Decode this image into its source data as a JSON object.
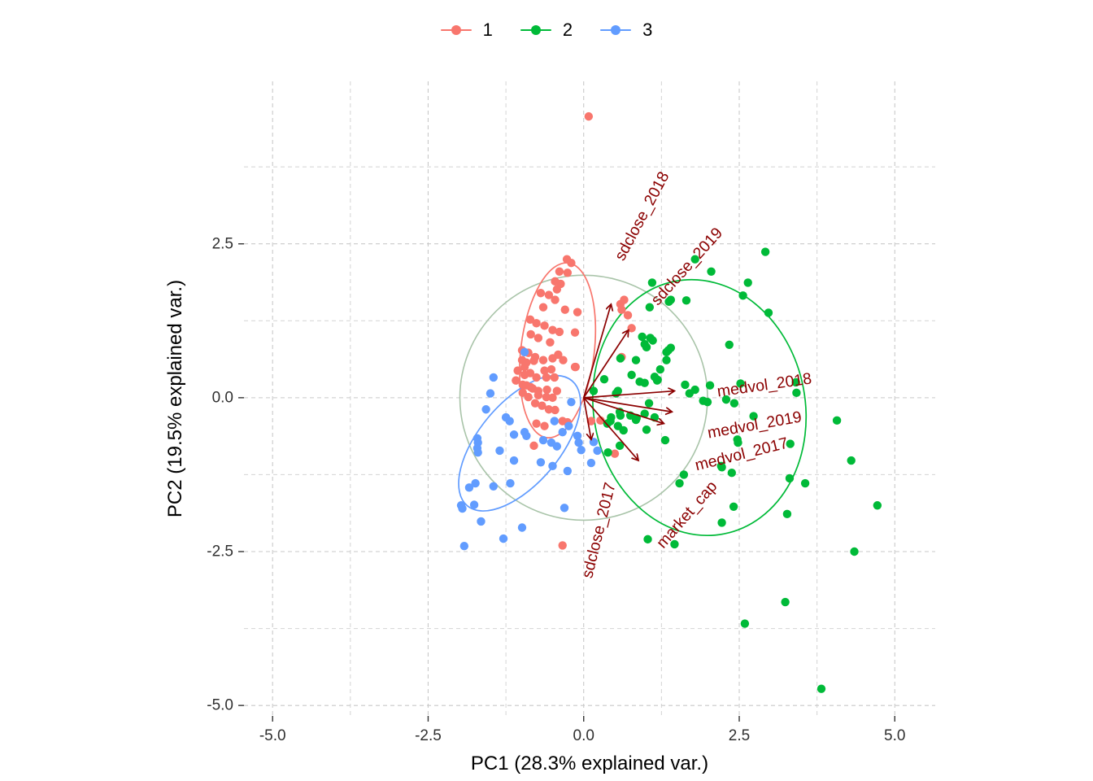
{
  "legend": {
    "items": [
      {
        "label": "1",
        "color": "#F8766D"
      },
      {
        "label": "2",
        "color": "#00BA38"
      },
      {
        "label": "3",
        "color": "#619CFF"
      }
    ]
  },
  "axes": {
    "x": {
      "title": "PC1 (28.3% explained var.)",
      "range": [
        -5.46,
        5.65
      ],
      "major_ticks": [
        -5.0,
        -2.5,
        0.0,
        2.5,
        5.0
      ],
      "tick_labels": [
        "-5.0",
        "-2.5",
        "0.0",
        "2.5",
        "5.0"
      ],
      "minor_ticks": [
        -3.75,
        -1.25,
        1.25,
        3.75
      ]
    },
    "y": {
      "title": "PC2 (19.5% explained var.)",
      "range": [
        -5.17,
        5.14
      ],
      "major_ticks": [
        2.5,
        0.0,
        -2.5,
        -5.0
      ],
      "tick_labels": [
        "2.5",
        "0.0",
        "-2.5",
        "-5.0"
      ],
      "minor_ticks": [
        3.75,
        1.25,
        -1.25,
        -3.75
      ]
    }
  },
  "chart_data": {
    "type": "scatter",
    "subtype": "pca-biplot",
    "title": "",
    "xlabel": "PC1 (28.3% explained var.)",
    "ylabel": "PC2 (19.5% explained var.)",
    "grid": "dashed",
    "legend_position": "top",
    "colors": {
      "grid": "#cccccc",
      "loading": "#8b0000",
      "unit_circle": "#a9c4a9"
    },
    "unit_circle": {
      "cx": 0,
      "cy": 0,
      "r": 1.99
    },
    "loadings": [
      {
        "name": "sdclose_2018",
        "tip_x": 0.44,
        "tip_y": 1.52,
        "label_x": 0.94,
        "label_y": 2.95,
        "label_angle": -62
      },
      {
        "name": "sdclose_2019",
        "tip_x": 0.72,
        "tip_y": 1.1,
        "label_x": 1.66,
        "label_y": 2.13,
        "label_angle": -48
      },
      {
        "name": "medvol_2018",
        "tip_x": 1.46,
        "tip_y": 0.11,
        "label_x": 2.9,
        "label_y": 0.19,
        "label_angle": -8
      },
      {
        "name": "medvol_2019",
        "tip_x": 1.42,
        "tip_y": -0.23,
        "label_x": 2.75,
        "label_y": -0.45,
        "label_angle": -10
      },
      {
        "name": "medvol_2017",
        "tip_x": 1.29,
        "tip_y": -0.42,
        "label_x": 2.54,
        "label_y": -0.93,
        "label_angle": -14
      },
      {
        "name": "market_cap",
        "tip_x": 0.88,
        "tip_y": -1.02,
        "label_x": 1.66,
        "label_y": -1.91,
        "label_angle": -49
      },
      {
        "name": "sdclose_2017",
        "tip_x": 0.12,
        "tip_y": -0.68,
        "label_x": 0.25,
        "label_y": -2.15,
        "label_angle": -76
      }
    ],
    "groups": [
      {
        "name": "1",
        "color": "#F8766D",
        "ellipse": {
          "cx": -0.42,
          "cy": 0.77,
          "rx": 0.59,
          "ry": 1.43,
          "angle": 7
        },
        "points": [
          [
            0.08,
            4.57
          ],
          [
            -0.27,
            2.25
          ],
          [
            -0.2,
            2.19
          ],
          [
            -0.39,
            2.05
          ],
          [
            -0.26,
            2.03
          ],
          [
            -0.46,
            1.89
          ],
          [
            -0.37,
            1.85
          ],
          [
            -0.43,
            1.76
          ],
          [
            -0.69,
            1.7
          ],
          [
            -0.56,
            1.67
          ],
          [
            -0.46,
            1.59
          ],
          [
            0.59,
            1.52
          ],
          [
            0.65,
            1.59
          ],
          [
            0.61,
            1.43
          ],
          [
            0.71,
            1.34
          ],
          [
            0.77,
            1.13
          ],
          [
            0.61,
            0.66
          ],
          [
            -0.3,
            1.43
          ],
          [
            -0.1,
            1.39
          ],
          [
            -0.65,
            1.47
          ],
          [
            -0.86,
            1.27
          ],
          [
            -0.76,
            1.21
          ],
          [
            -0.63,
            1.17
          ],
          [
            -0.5,
            1.1
          ],
          [
            -0.39,
            1.07
          ],
          [
            -0.85,
            1.03
          ],
          [
            -0.73,
            0.97
          ],
          [
            -0.54,
            0.9
          ],
          [
            -0.14,
            1.06
          ],
          [
            -0.99,
            0.77
          ],
          [
            -0.89,
            0.73
          ],
          [
            -0.78,
            0.66
          ],
          [
            -0.65,
            0.61
          ],
          [
            -0.5,
            0.64
          ],
          [
            -0.41,
            0.7
          ],
          [
            -0.33,
            0.61
          ],
          [
            -0.14,
            0.5
          ],
          [
            -0.99,
            0.61
          ],
          [
            -0.95,
            0.5
          ],
          [
            -1.06,
            0.44
          ],
          [
            -0.86,
            0.4
          ],
          [
            -0.76,
            0.33
          ],
          [
            -0.6,
            0.33
          ],
          [
            -0.47,
            0.33
          ],
          [
            -1.09,
            0.28
          ],
          [
            -0.98,
            0.21
          ],
          [
            -0.85,
            0.17
          ],
          [
            -0.98,
            0.08
          ],
          [
            -0.73,
            0.11
          ],
          [
            -0.59,
            0.13
          ],
          [
            -0.43,
            0.11
          ],
          [
            -0.92,
            0.57
          ],
          [
            -0.8,
            0.6
          ],
          [
            -0.63,
            0.44
          ],
          [
            -0.52,
            0.46
          ],
          [
            -0.95,
            0.37
          ],
          [
            -0.92,
            0.2
          ],
          [
            -0.82,
            0.15
          ],
          [
            -0.89,
            0.01
          ],
          [
            -0.73,
            0.04
          ],
          [
            -0.6,
            0.01
          ],
          [
            -0.5,
            0.0
          ],
          [
            -0.78,
            -0.09
          ],
          [
            -0.67,
            -0.13
          ],
          [
            -0.56,
            -0.19
          ],
          [
            -0.46,
            -0.2
          ],
          [
            -0.34,
            -0.38
          ],
          [
            -0.26,
            -0.4
          ],
          [
            -0.76,
            -0.42
          ],
          [
            -0.63,
            -0.46
          ],
          [
            -0.8,
            -0.78
          ],
          [
            -0.13,
            0.5
          ],
          [
            0.5,
            -0.91
          ],
          [
            0.12,
            -0.38
          ],
          [
            0.27,
            -0.37
          ],
          [
            -0.34,
            -2.4
          ]
        ]
      },
      {
        "name": "2",
        "color": "#00BA38",
        "ellipse": {
          "cx": 1.86,
          "cy": -0.16,
          "rx": 1.7,
          "ry": 2.09,
          "angle": -11
        },
        "points": [
          [
            2.92,
            2.37
          ],
          [
            1.79,
            2.25
          ],
          [
            2.05,
            2.05
          ],
          [
            2.64,
            1.87
          ],
          [
            2.56,
            1.66
          ],
          [
            2.97,
            1.38
          ],
          [
            1.1,
            1.87
          ],
          [
            1.4,
            1.59
          ],
          [
            1.65,
            1.58
          ],
          [
            1.37,
            1.56
          ],
          [
            1.06,
            1.47
          ],
          [
            0.94,
            0.99
          ],
          [
            1.07,
            0.97
          ],
          [
            0.98,
            0.87
          ],
          [
            1.11,
            0.93
          ],
          [
            1.01,
            0.82
          ],
          [
            1.4,
            0.81
          ],
          [
            1.36,
            0.77
          ],
          [
            1.33,
            0.74
          ],
          [
            1.33,
            0.61
          ],
          [
            1.23,
            0.46
          ],
          [
            1.19,
            0.29
          ],
          [
            1.63,
            0.21
          ],
          [
            1.7,
            0.07
          ],
          [
            2.34,
            0.86
          ],
          [
            0.84,
            0.61
          ],
          [
            0.59,
            0.64
          ],
          [
            0.77,
            0.37
          ],
          [
            0.9,
            0.26
          ],
          [
            0.98,
            0.24
          ],
          [
            1.14,
            0.34
          ],
          [
            1.18,
            0.28
          ],
          [
            1.79,
            0.13
          ],
          [
            1.99,
            -0.07
          ],
          [
            0.55,
            0.11
          ],
          [
            0.58,
            -0.23
          ],
          [
            0.75,
            -0.29
          ],
          [
            0.85,
            -0.33
          ],
          [
            0.98,
            -0.26
          ],
          [
            1.05,
            -0.09
          ],
          [
            1.14,
            -0.32
          ],
          [
            0.44,
            -0.32
          ],
          [
            0.84,
            -0.36
          ],
          [
            0.38,
            -0.42
          ],
          [
            0.55,
            -0.46
          ],
          [
            0.64,
            -0.53
          ],
          [
            1.01,
            -0.52
          ],
          [
            1.31,
            -0.69
          ],
          [
            2.21,
            -1.11
          ],
          [
            2.38,
            -1.22
          ],
          [
            0.16,
            0.11
          ],
          [
            0.33,
            0.3
          ],
          [
            0.52,
            0.07
          ],
          [
            0.59,
            -0.29
          ],
          [
            0.43,
            -0.38
          ],
          [
            0.58,
            -0.78
          ],
          [
            0.39,
            -0.89
          ],
          [
            1.03,
            -2.3
          ],
          [
            2.52,
            0.23
          ],
          [
            3.41,
            0.25
          ],
          [
            3.42,
            0.08
          ],
          [
            2.42,
            -0.09
          ],
          [
            2.73,
            -0.3
          ],
          [
            2.47,
            -0.68
          ],
          [
            3.32,
            -0.75
          ],
          [
            4.07,
            -0.37
          ],
          [
            4.3,
            -1.02
          ],
          [
            3.31,
            -1.31
          ],
          [
            3.56,
            -1.39
          ],
          [
            2.41,
            -1.77
          ],
          [
            2.22,
            -2.03
          ],
          [
            3.27,
            -1.89
          ],
          [
            4.72,
            -1.75
          ],
          [
            1.46,
            -2.38
          ],
          [
            4.35,
            -2.5
          ],
          [
            3.24,
            -3.32
          ],
          [
            2.59,
            -3.67
          ],
          [
            3.82,
            -4.73
          ],
          [
            1.61,
            -1.25
          ],
          [
            1.54,
            -1.39
          ],
          [
            2.22,
            -1.13
          ],
          [
            2.48,
            -0.73
          ],
          [
            2.03,
            0.2
          ],
          [
            1.92,
            -0.05
          ],
          [
            2.29,
            -0.03
          ]
        ]
      },
      {
        "name": "3",
        "color": "#619CFF",
        "ellipse": {
          "cx": -1.03,
          "cy": -0.74,
          "rx": 1.31,
          "ry": 0.66,
          "angle": -50
        },
        "points": [
          [
            -0.95,
            0.74
          ],
          [
            -1.45,
            0.33
          ],
          [
            -1.5,
            0.07
          ],
          [
            -1.57,
            -0.19
          ],
          [
            -1.25,
            -0.32
          ],
          [
            -1.19,
            -0.38
          ],
          [
            -1.12,
            -0.6
          ],
          [
            -0.95,
            -0.56
          ],
          [
            -0.92,
            -0.62
          ],
          [
            -0.47,
            -0.38
          ],
          [
            -0.34,
            -0.56
          ],
          [
            -0.65,
            -0.69
          ],
          [
            -0.52,
            -0.73
          ],
          [
            -0.43,
            -0.79
          ],
          [
            -1.71,
            -0.66
          ],
          [
            -1.7,
            -0.73
          ],
          [
            -1.71,
            -0.82
          ],
          [
            -1.7,
            -0.89
          ],
          [
            -1.35,
            -0.86
          ],
          [
            -1.12,
            -1.02
          ],
          [
            -0.69,
            -1.05
          ],
          [
            -0.5,
            -1.11
          ],
          [
            -0.26,
            -1.19
          ],
          [
            -1.84,
            -1.46
          ],
          [
            -1.45,
            -1.44
          ],
          [
            -1.18,
            -1.39
          ],
          [
            -1.97,
            -1.75
          ],
          [
            -1.95,
            -1.8
          ],
          [
            -1.65,
            -2.01
          ],
          [
            -0.99,
            -2.11
          ],
          [
            -0.31,
            -1.79
          ],
          [
            -1.74,
            -1.39
          ],
          [
            -1.76,
            -1.74
          ],
          [
            -1.29,
            -2.29
          ],
          [
            -1.92,
            -2.41
          ],
          [
            -0.24,
            -0.46
          ],
          [
            -0.08,
            -0.73
          ],
          [
            -0.04,
            -0.85
          ],
          [
            0.22,
            -0.86
          ],
          [
            0.12,
            -1.06
          ],
          [
            0.16,
            -0.72
          ],
          [
            -0.2,
            -0.07
          ],
          [
            -0.1,
            -0.62
          ]
        ]
      }
    ]
  }
}
